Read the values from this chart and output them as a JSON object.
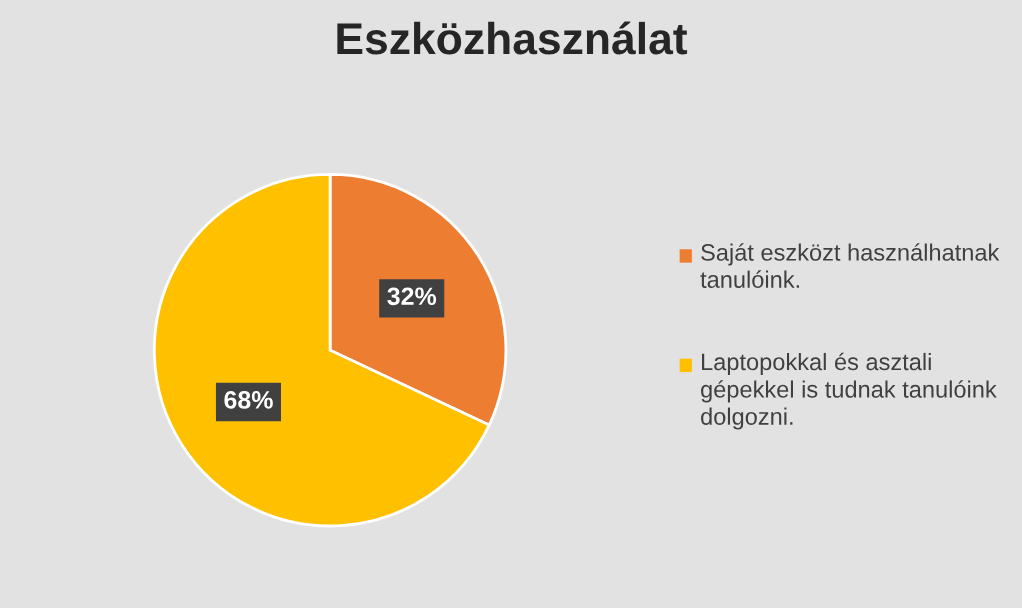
{
  "chart_data": {
    "type": "pie",
    "title": "Eszközhasználat",
    "categories": [
      "Saját eszközt használhatnak tanulóink.",
      "Laptopokkal és asztali gépekkel is tudnak tanulóink dolgozni."
    ],
    "values": [
      32,
      68
    ],
    "colors": [
      "#ed7d31",
      "#ffc000"
    ],
    "value_labels": [
      "32%",
      "68%"
    ],
    "legend": "right"
  }
}
